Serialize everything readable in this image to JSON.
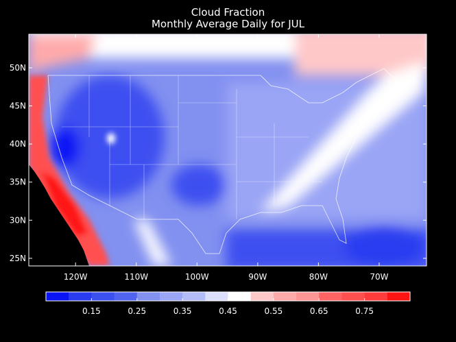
{
  "chart_data": {
    "type": "heatmap",
    "title": "Cloud Fraction",
    "subtitle": "Monthly Average Daily for JUL",
    "x_ticks": [
      "120W",
      "110W",
      "100W",
      "90W",
      "80W",
      "70W"
    ],
    "x_tick_values": [
      -120,
      -110,
      -100,
      -90,
      -80,
      -70
    ],
    "y_ticks": [
      "50N",
      "45N",
      "40N",
      "35N",
      "30N",
      "25N"
    ],
    "y_tick_values": [
      50,
      45,
      40,
      35,
      30,
      25
    ],
    "xlim": [
      -127.7,
      -62.2
    ],
    "ylim": [
      24,
      54.4
    ],
    "colorbar": {
      "min": 0.05,
      "max": 0.85,
      "step": 0.05,
      "labels": [
        "0.15",
        "0.25",
        "0.35",
        "0.45",
        "0.55",
        "0.65",
        "0.75"
      ],
      "label_values": [
        0.15,
        0.25,
        0.35,
        0.45,
        0.55,
        0.65,
        0.75
      ],
      "colors": [
        "#0a14f5",
        "#2a3cf0",
        "#3c50f0",
        "#5064f0",
        "#8290f0",
        "#9aa5f5",
        "#b4bcf8",
        "#dcdffa",
        "#ffffff",
        "#ffc8c8",
        "#ffaaaa",
        "#ff9696",
        "#ff6464",
        "#ff5050",
        "#ff3c3c",
        "#ff1414"
      ]
    }
  }
}
